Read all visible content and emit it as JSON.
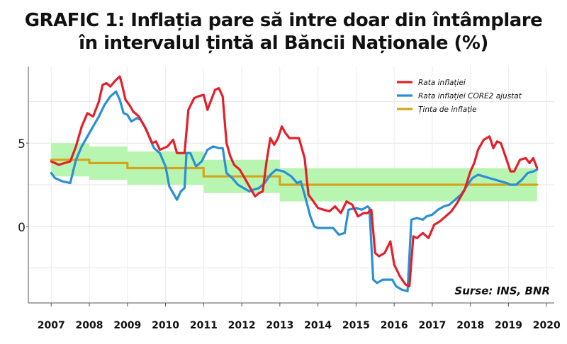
{
  "title_line1": "GRAFIC 1:  Inflația pare să intre doar din întâmplare",
  "title_line2": "în intervalul țintă al Băncii Naționale (%)",
  "chart_data": {
    "type": "line",
    "source_note": "Surse: INS, BNR",
    "x_ticks": [
      "2007",
      "2008",
      "2009",
      "2010",
      "2011",
      "2012",
      "2013",
      "2014",
      "2015",
      "2016",
      "2017",
      "2018",
      "2019",
      "2020"
    ],
    "y_ticks": [
      "0",
      "5"
    ],
    "xlim": [
      2006.4,
      2020.2
    ],
    "ylim": [
      -4.6,
      9.6
    ],
    "grid": true,
    "legend_position": "top-right",
    "series": [
      {
        "name": "Rata inflației",
        "color": "#e3202a",
        "points": [
          [
            2007.0,
            3.9
          ],
          [
            2007.1,
            3.8
          ],
          [
            2007.2,
            3.7
          ],
          [
            2007.35,
            3.8
          ],
          [
            2007.5,
            3.9
          ],
          [
            2007.65,
            4.8
          ],
          [
            2007.8,
            6.0
          ],
          [
            2007.95,
            6.8
          ],
          [
            2008.1,
            6.6
          ],
          [
            2008.25,
            7.5
          ],
          [
            2008.35,
            8.5
          ],
          [
            2008.45,
            8.6
          ],
          [
            2008.55,
            8.4
          ],
          [
            2008.7,
            8.8
          ],
          [
            2008.8,
            9.0
          ],
          [
            2008.85,
            8.6
          ],
          [
            2008.95,
            7.6
          ],
          [
            2009.05,
            7.3
          ],
          [
            2009.15,
            6.9
          ],
          [
            2009.3,
            6.6
          ],
          [
            2009.45,
            6.0
          ],
          [
            2009.55,
            5.5
          ],
          [
            2009.65,
            5.0
          ],
          [
            2009.75,
            5.1
          ],
          [
            2009.85,
            4.6
          ],
          [
            2009.95,
            4.7
          ],
          [
            2010.05,
            4.8
          ],
          [
            2010.2,
            5.2
          ],
          [
            2010.3,
            4.4
          ],
          [
            2010.5,
            4.4
          ],
          [
            2010.6,
            7.0
          ],
          [
            2010.75,
            7.7
          ],
          [
            2010.85,
            7.8
          ],
          [
            2011.0,
            7.9
          ],
          [
            2011.1,
            7.0
          ],
          [
            2011.2,
            7.6
          ],
          [
            2011.3,
            8.2
          ],
          [
            2011.4,
            8.3
          ],
          [
            2011.5,
            7.8
          ],
          [
            2011.6,
            5.0
          ],
          [
            2011.7,
            4.2
          ],
          [
            2011.8,
            3.7
          ],
          [
            2011.95,
            3.4
          ],
          [
            2012.1,
            2.8
          ],
          [
            2012.2,
            2.4
          ],
          [
            2012.35,
            1.8
          ],
          [
            2012.45,
            2.0
          ],
          [
            2012.55,
            2.1
          ],
          [
            2012.65,
            3.9
          ],
          [
            2012.75,
            5.3
          ],
          [
            2012.85,
            4.9
          ],
          [
            2012.95,
            5.3
          ],
          [
            2013.05,
            6.0
          ],
          [
            2013.15,
            5.6
          ],
          [
            2013.25,
            5.3
          ],
          [
            2013.5,
            5.3
          ],
          [
            2013.65,
            4.1
          ],
          [
            2013.75,
            1.9
          ],
          [
            2013.85,
            1.6
          ],
          [
            2014.0,
            1.1
          ],
          [
            2014.15,
            1.0
          ],
          [
            2014.3,
            0.9
          ],
          [
            2014.45,
            1.2
          ],
          [
            2014.6,
            0.8
          ],
          [
            2014.75,
            1.5
          ],
          [
            2014.9,
            1.3
          ],
          [
            2015.05,
            0.6
          ],
          [
            2015.2,
            0.8
          ],
          [
            2015.3,
            0.8
          ],
          [
            2015.4,
            1.0
          ],
          [
            2015.5,
            -1.6
          ],
          [
            2015.6,
            -1.8
          ],
          [
            2015.75,
            -1.6
          ],
          [
            2015.9,
            -0.9
          ],
          [
            2016.0,
            -2.3
          ],
          [
            2016.15,
            -3.0
          ],
          [
            2016.3,
            -3.5
          ],
          [
            2016.4,
            -3.6
          ],
          [
            2016.5,
            -0.6
          ],
          [
            2016.6,
            -0.7
          ],
          [
            2016.75,
            -0.4
          ],
          [
            2016.9,
            -0.7
          ],
          [
            2017.05,
            0.1
          ],
          [
            2017.2,
            0.3
          ],
          [
            2017.35,
            0.6
          ],
          [
            2017.5,
            0.9
          ],
          [
            2017.65,
            1.4
          ],
          [
            2017.85,
            2.2
          ],
          [
            2018.0,
            3.3
          ],
          [
            2018.1,
            3.8
          ],
          [
            2018.2,
            4.6
          ],
          [
            2018.35,
            5.2
          ],
          [
            2018.5,
            5.4
          ],
          [
            2018.6,
            4.7
          ],
          [
            2018.7,
            5.1
          ],
          [
            2018.8,
            5.0
          ],
          [
            2018.95,
            4.0
          ],
          [
            2019.05,
            3.3
          ],
          [
            2019.15,
            3.3
          ],
          [
            2019.3,
            4.0
          ],
          [
            2019.45,
            4.1
          ],
          [
            2019.55,
            3.8
          ],
          [
            2019.65,
            4.1
          ],
          [
            2019.75,
            3.5
          ]
        ]
      },
      {
        "name": "Rata inflației CORE2 ajustat",
        "color": "#2a8fd6",
        "points": [
          [
            2007.0,
            3.2
          ],
          [
            2007.1,
            2.9
          ],
          [
            2007.3,
            2.7
          ],
          [
            2007.5,
            2.6
          ],
          [
            2007.65,
            4.0
          ],
          [
            2007.8,
            4.8
          ],
          [
            2007.95,
            5.4
          ],
          [
            2008.1,
            6.0
          ],
          [
            2008.25,
            6.6
          ],
          [
            2008.4,
            7.3
          ],
          [
            2008.55,
            7.8
          ],
          [
            2008.7,
            8.1
          ],
          [
            2008.8,
            7.6
          ],
          [
            2008.9,
            6.8
          ],
          [
            2009.0,
            6.7
          ],
          [
            2009.1,
            6.3
          ],
          [
            2009.25,
            6.5
          ],
          [
            2009.35,
            6.4
          ],
          [
            2009.5,
            5.8
          ],
          [
            2009.6,
            5.2
          ],
          [
            2009.7,
            4.7
          ],
          [
            2009.85,
            4.4
          ],
          [
            2010.0,
            3.6
          ],
          [
            2010.1,
            2.4
          ],
          [
            2010.2,
            2.0
          ],
          [
            2010.3,
            1.6
          ],
          [
            2010.4,
            2.1
          ],
          [
            2010.5,
            2.3
          ],
          [
            2010.55,
            4.4
          ],
          [
            2010.65,
            4.4
          ],
          [
            2010.8,
            3.6
          ],
          [
            2010.95,
            3.9
          ],
          [
            2011.1,
            4.6
          ],
          [
            2011.25,
            4.8
          ],
          [
            2011.4,
            4.7
          ],
          [
            2011.5,
            4.7
          ],
          [
            2011.6,
            3.2
          ],
          [
            2011.75,
            2.9
          ],
          [
            2011.9,
            2.5
          ],
          [
            2012.05,
            2.3
          ],
          [
            2012.2,
            2.1
          ],
          [
            2012.3,
            2.2
          ],
          [
            2012.45,
            2.3
          ],
          [
            2012.6,
            2.6
          ],
          [
            2012.75,
            3.1
          ],
          [
            2012.9,
            3.4
          ],
          [
            2013.1,
            3.3
          ],
          [
            2013.3,
            3.0
          ],
          [
            2013.45,
            2.6
          ],
          [
            2013.55,
            2.7
          ],
          [
            2013.65,
            1.9
          ],
          [
            2013.8,
            0.6
          ],
          [
            2013.9,
            0.0
          ],
          [
            2014.0,
            -0.1
          ],
          [
            2014.2,
            -0.1
          ],
          [
            2014.4,
            -0.1
          ],
          [
            2014.55,
            -0.5
          ],
          [
            2014.7,
            -0.4
          ],
          [
            2014.8,
            1.0
          ],
          [
            2015.0,
            1.1
          ],
          [
            2015.15,
            1.0
          ],
          [
            2015.3,
            1.2
          ],
          [
            2015.35,
            1.1
          ],
          [
            2015.45,
            -3.2
          ],
          [
            2015.55,
            -3.4
          ],
          [
            2015.7,
            -3.2
          ],
          [
            2015.85,
            -3.2
          ],
          [
            2015.95,
            -3.2
          ],
          [
            2016.05,
            -3.6
          ],
          [
            2016.2,
            -3.8
          ],
          [
            2016.35,
            -3.9
          ],
          [
            2016.45,
            0.4
          ],
          [
            2016.6,
            0.5
          ],
          [
            2016.75,
            0.4
          ],
          [
            2016.85,
            0.6
          ],
          [
            2017.0,
            0.7
          ],
          [
            2017.15,
            1.0
          ],
          [
            2017.3,
            1.2
          ],
          [
            2017.45,
            1.3
          ],
          [
            2017.6,
            1.6
          ],
          [
            2017.75,
            1.9
          ],
          [
            2017.9,
            2.4
          ],
          [
            2018.05,
            2.9
          ],
          [
            2018.2,
            3.1
          ],
          [
            2018.35,
            3.0
          ],
          [
            2018.5,
            2.9
          ],
          [
            2018.65,
            2.8
          ],
          [
            2018.8,
            2.7
          ],
          [
            2018.95,
            2.6
          ],
          [
            2019.05,
            2.5
          ],
          [
            2019.2,
            2.5
          ],
          [
            2019.35,
            2.8
          ],
          [
            2019.5,
            3.2
          ],
          [
            2019.65,
            3.3
          ],
          [
            2019.75,
            3.4
          ]
        ]
      },
      {
        "name": "Ținta de inflație",
        "color": "#d4a51c",
        "points": [
          [
            2007.0,
            4.0
          ],
          [
            2008.0,
            4.0
          ],
          [
            2008.0,
            3.8
          ],
          [
            2009.0,
            3.8
          ],
          [
            2009.0,
            3.5
          ],
          [
            2011.0,
            3.5
          ],
          [
            2011.0,
            3.0
          ],
          [
            2012.0,
            3.0
          ],
          [
            2013.0,
            3.0
          ],
          [
            2013.0,
            2.5
          ],
          [
            2019.75,
            2.5
          ]
        ]
      }
    ],
    "target_band": {
      "color": "#b8f5b0",
      "segments": [
        {
          "x": [
            2007.0,
            2008.0
          ],
          "low": 3.0,
          "high": 5.0
        },
        {
          "x": [
            2008.0,
            2009.0
          ],
          "low": 2.8,
          "high": 4.8
        },
        {
          "x": [
            2009.0,
            2011.0
          ],
          "low": 2.5,
          "high": 4.5
        },
        {
          "x": [
            2011.0,
            2013.0
          ],
          "low": 2.0,
          "high": 4.0
        },
        {
          "x": [
            2013.0,
            2019.75
          ],
          "low": 1.5,
          "high": 3.5
        }
      ]
    }
  }
}
